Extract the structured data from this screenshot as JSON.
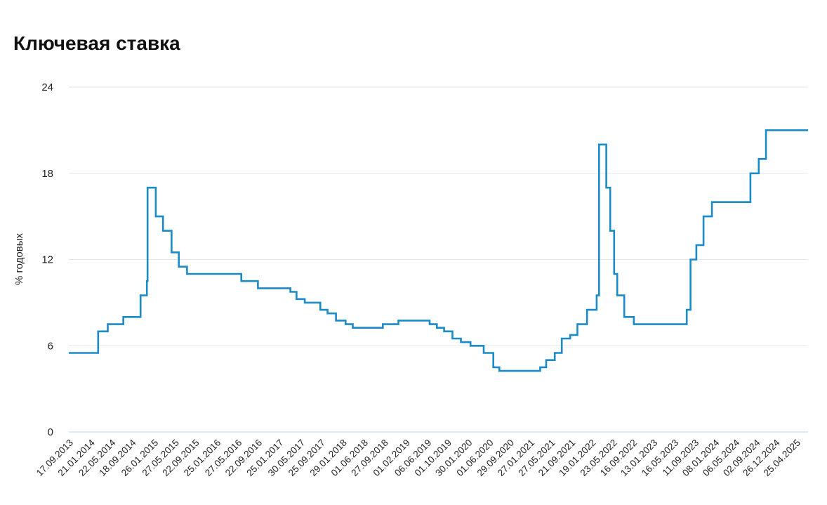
{
  "chart_data": {
    "type": "line",
    "title": "Ключевая ставка",
    "ylabel": "% годовых",
    "xlabel": "",
    "ylim": [
      0,
      24
    ],
    "yticks": [
      0,
      6,
      12,
      18,
      24
    ],
    "grid": true,
    "line_color": "#1b8bc8",
    "xlim": [
      "2013-09-13",
      "2025-06-30"
    ],
    "xticks": [
      "17.09.2013",
      "21.01.2014",
      "22.05.2014",
      "18.09.2014",
      "26.01.2015",
      "27.05.2015",
      "22.09.2015",
      "25.01.2016",
      "27.05.2016",
      "22.09.2016",
      "25.01.2017",
      "30.05.2017",
      "25.09.2017",
      "29.01.2018",
      "01.06.2018",
      "27.09.2018",
      "01.02.2019",
      "06.06.2019",
      "01.10.2019",
      "30.01.2020",
      "01.06.2020",
      "29.09.2020",
      "27.01.2021",
      "27.05.2021",
      "21.09.2021",
      "19.01.2022",
      "23.05.2022",
      "16.09.2022",
      "13.01.2023",
      "16.05.2023",
      "11.09.2023",
      "08.01.2024",
      "06.05.2024",
      "02.09.2024",
      "26.12.2024",
      "25.04.2025"
    ],
    "series": [
      {
        "step": true,
        "x": [
          "2013-09-13",
          "2014-03-03",
          "2014-04-28",
          "2014-07-28",
          "2014-11-05",
          "2014-12-12",
          "2014-12-16",
          "2015-02-02",
          "2015-03-16",
          "2015-05-05",
          "2015-06-16",
          "2015-08-03",
          "2016-06-14",
          "2016-09-19",
          "2017-03-27",
          "2017-05-02",
          "2017-06-19",
          "2017-09-18",
          "2017-10-30",
          "2017-12-18",
          "2018-02-12",
          "2018-03-26",
          "2018-09-17",
          "2018-12-17",
          "2019-06-17",
          "2019-07-29",
          "2019-09-09",
          "2019-10-28",
          "2019-12-16",
          "2020-02-10",
          "2020-04-27",
          "2020-06-22",
          "2020-07-27",
          "2021-03-22",
          "2021-04-26",
          "2021-06-15",
          "2021-07-26",
          "2021-09-13",
          "2021-10-25",
          "2021-12-20",
          "2022-02-14",
          "2022-02-28",
          "2022-04-11",
          "2022-05-04",
          "2022-05-27",
          "2022-06-14",
          "2022-07-25",
          "2022-09-19",
          "2023-07-24",
          "2023-08-15",
          "2023-09-18",
          "2023-10-30",
          "2023-12-18",
          "2024-07-29",
          "2024-09-16",
          "2024-10-28",
          "2025-06-30"
        ],
        "y": [
          5.5,
          7.0,
          7.5,
          8.0,
          9.5,
          10.5,
          17.0,
          15.0,
          14.0,
          12.5,
          11.5,
          11.0,
          10.5,
          10.0,
          9.75,
          9.25,
          9.0,
          8.5,
          8.25,
          7.75,
          7.5,
          7.25,
          7.5,
          7.75,
          7.5,
          7.25,
          7.0,
          6.5,
          6.25,
          6.0,
          5.5,
          4.5,
          4.25,
          4.5,
          5.0,
          5.5,
          6.5,
          6.75,
          7.5,
          8.5,
          9.5,
          20.0,
          17.0,
          14.0,
          11.0,
          9.5,
          8.0,
          7.5,
          8.5,
          12.0,
          13.0,
          15.0,
          16.0,
          18.0,
          19.0,
          21.0,
          21.0
        ]
      }
    ]
  }
}
